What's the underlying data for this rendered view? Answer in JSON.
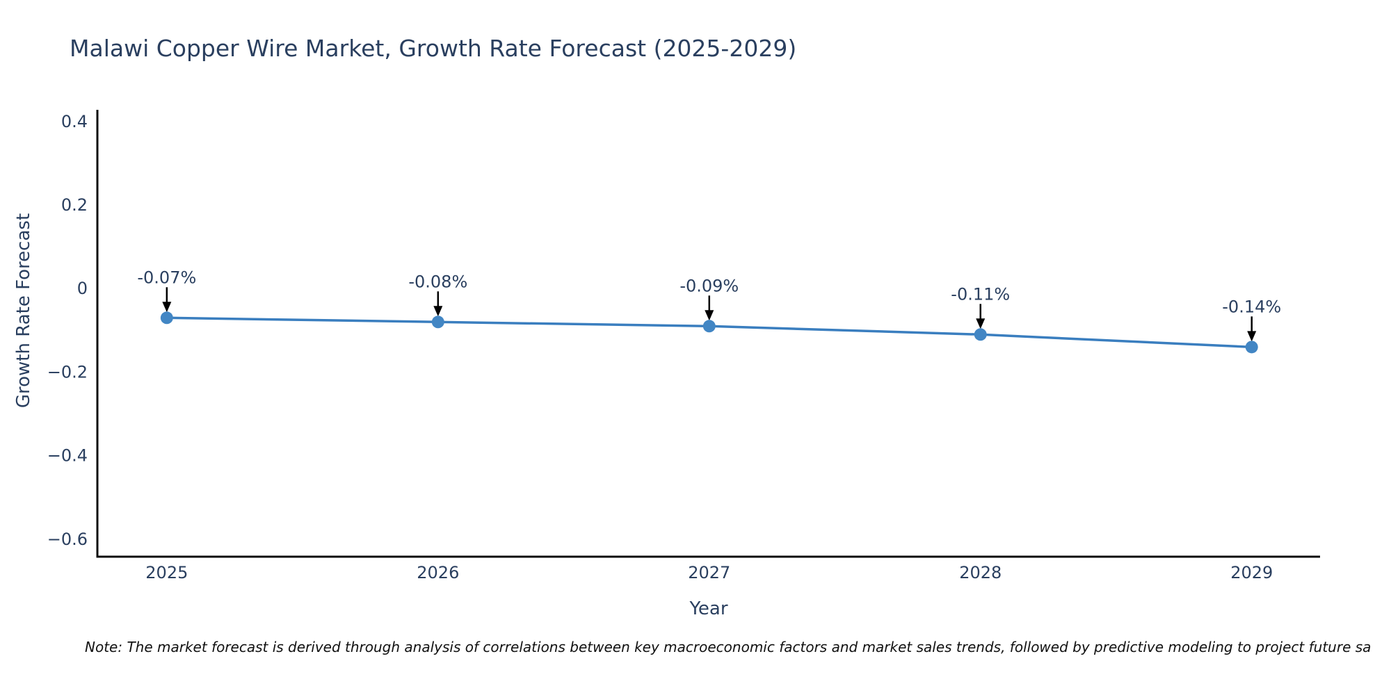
{
  "title": {
    "text": "Malawi Copper Wire Market, Growth Rate Forecast (2025-2029)"
  },
  "note": {
    "text": "Note: The market forecast is derived through analysis of correlations between key macroeconomic factors and market sales trends, followed by predictive modeling to project future sa"
  },
  "chart_data": {
    "type": "line",
    "title": "Malawi Copper Wire Market, Growth Rate Forecast (2025-2029)",
    "xlabel": "Year",
    "ylabel": "Growth Rate Forecast",
    "x": [
      2025,
      2026,
      2027,
      2028,
      2029
    ],
    "series": [
      {
        "name": "Growth Rate Forecast",
        "values": [
          -0.07,
          -0.08,
          -0.09,
          -0.11,
          -0.14
        ]
      }
    ],
    "point_labels": [
      "-0.07%",
      "-0.08%",
      "-0.09%",
      "-0.11%",
      "-0.14%"
    ],
    "xtick_labels": [
      "2025",
      "2026",
      "2027",
      "2028",
      "2029"
    ],
    "yticks": [
      0.4,
      0.2,
      0,
      -0.2,
      -0.4,
      -0.6
    ],
    "ytick_labels": [
      "0.4",
      "0.2",
      "0",
      "−0.2",
      "−0.4",
      "−0.6"
    ],
    "xlim": [
      2024.744,
      2029.252
    ],
    "ylim": [
      -0.642,
      0.428
    ],
    "grid": false,
    "legend": false,
    "colors": {
      "line": "#3a7ebf",
      "marker": "#4286c4",
      "axis": "#0d0d0d",
      "text": "#2a3f5f",
      "arrow": "#000000"
    }
  }
}
